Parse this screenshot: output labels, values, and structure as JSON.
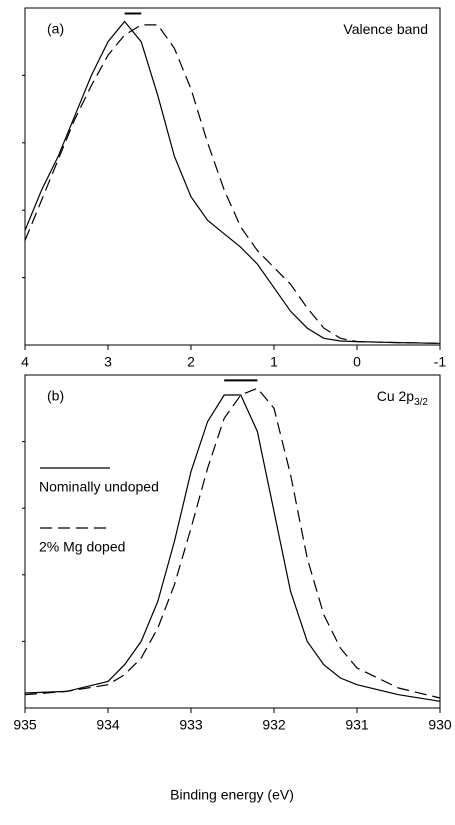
{
  "chart_data": [
    {
      "type": "line",
      "annotations": [
        "(a)",
        "Valence band"
      ],
      "x": [
        4,
        3.8,
        3.6,
        3.4,
        3.2,
        3.0,
        2.8,
        2.6,
        2.4,
        2.2,
        2.0,
        1.8,
        1.6,
        1.4,
        1.2,
        1.0,
        0.8,
        0.6,
        0.4,
        0.2,
        0,
        -0.5,
        -1
      ],
      "series": [
        {
          "name": "Nominally undoped",
          "color": "#000000",
          "style": "solid",
          "values": [
            0.34,
            0.46,
            0.56,
            0.68,
            0.8,
            0.9,
            0.96,
            0.9,
            0.74,
            0.56,
            0.44,
            0.37,
            0.33,
            0.29,
            0.24,
            0.17,
            0.1,
            0.05,
            0.02,
            0.012,
            0.01,
            0.007,
            0.005
          ]
        },
        {
          "name": "2% Mg doped",
          "color": "#000000",
          "style": "dashed",
          "values": [
            0.31,
            0.43,
            0.55,
            0.67,
            0.77,
            0.86,
            0.92,
            0.95,
            0.95,
            0.88,
            0.76,
            0.6,
            0.46,
            0.35,
            0.28,
            0.23,
            0.18,
            0.11,
            0.05,
            0.02,
            0.01,
            0.007,
            0.005
          ]
        }
      ],
      "xlim": [
        4,
        -1
      ],
      "xticks": [
        4,
        3,
        2,
        1,
        0,
        -1
      ],
      "ylim": [
        0,
        1
      ],
      "legend": false
    },
    {
      "type": "line",
      "annotations": [
        "(b)",
        "Cu 2p"
      ],
      "annotation_subscript": "3/2",
      "xlabel": "Binding energy (eV)",
      "x": [
        935,
        934.5,
        934,
        933.8,
        933.6,
        933.4,
        933.2,
        933,
        932.8,
        932.6,
        932.4,
        932.2,
        932,
        931.8,
        931.6,
        931.4,
        931.2,
        931,
        930.5,
        930
      ],
      "series": [
        {
          "name": "Nominally undoped",
          "color": "#000000",
          "style": "solid",
          "values": [
            0.045,
            0.05,
            0.08,
            0.13,
            0.2,
            0.32,
            0.5,
            0.71,
            0.86,
            0.94,
            0.94,
            0.83,
            0.59,
            0.35,
            0.2,
            0.13,
            0.09,
            0.07,
            0.04,
            0.02
          ]
        },
        {
          "name": "2% Mg doped",
          "color": "#000000",
          "style": "dashed",
          "values": [
            0.04,
            0.05,
            0.07,
            0.1,
            0.15,
            0.24,
            0.37,
            0.54,
            0.72,
            0.87,
            0.94,
            0.96,
            0.9,
            0.7,
            0.45,
            0.28,
            0.18,
            0.12,
            0.06,
            0.03
          ]
        }
      ],
      "xlim": [
        935,
        930
      ],
      "xticks": [
        935,
        934,
        933,
        932,
        931,
        930
      ],
      "ylim": [
        0,
        1
      ],
      "legend": true
    }
  ]
}
